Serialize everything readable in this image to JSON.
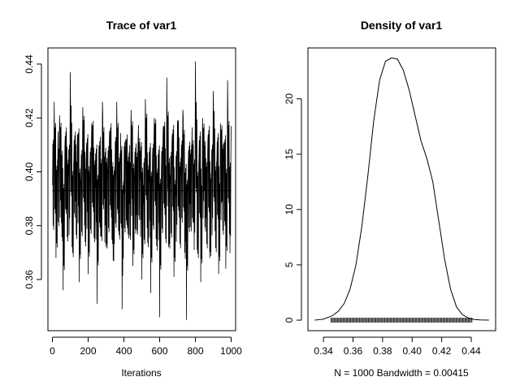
{
  "chart_data": [
    {
      "type": "line",
      "title": "Trace of var1",
      "xlabel": "Iterations",
      "ylabel": "",
      "xlim": [
        -25,
        1025
      ],
      "ylim": [
        0.341,
        0.446
      ],
      "x_ticks": [
        0,
        200,
        400,
        600,
        800,
        1000
      ],
      "x_tick_labels": [
        "0",
        "200",
        "400",
        "600",
        "800",
        "1000"
      ],
      "y_ticks": [
        0.36,
        0.38,
        0.4,
        0.42,
        0.44
      ],
      "y_tick_labels": [
        "0.36",
        "0.38",
        "0.40",
        "0.42",
        "0.44"
      ],
      "mean_line": 0.393,
      "series": [
        {
          "x": [
            1,
            10,
            20,
            30,
            40,
            50,
            60,
            70,
            80,
            90,
            100,
            110,
            120,
            130,
            140,
            150,
            160,
            170,
            180,
            190,
            200,
            210,
            220,
            230,
            240,
            250,
            260,
            270,
            280,
            290,
            300,
            310,
            320,
            330,
            340,
            350,
            360,
            370,
            380,
            390,
            400,
            410,
            420,
            430,
            440,
            450,
            460,
            470,
            480,
            490,
            500,
            510,
            520,
            530,
            540,
            550,
            560,
            570,
            580,
            590,
            600,
            610,
            620,
            630,
            640,
            650,
            660,
            670,
            680,
            690,
            700,
            710,
            720,
            730,
            740,
            750,
            760,
            770,
            780,
            790,
            800,
            810,
            820,
            830,
            840,
            850,
            860,
            870,
            880,
            890,
            900,
            910,
            920,
            930,
            940,
            950,
            960,
            970,
            980,
            990,
            1000
          ],
          "y": [
            0.395,
            0.426,
            0.368,
            0.405,
            0.421,
            0.381,
            0.356,
            0.41,
            0.386,
            0.399,
            0.437,
            0.372,
            0.405,
            0.389,
            0.414,
            0.359,
            0.398,
            0.424,
            0.38,
            0.407,
            0.362,
            0.401,
            0.418,
            0.385,
            0.394,
            0.351,
            0.409,
            0.376,
            0.426,
            0.39,
            0.372,
            0.403,
            0.415,
            0.383,
            0.367,
            0.398,
            0.426,
            0.378,
            0.403,
            0.349,
            0.392,
            0.412,
            0.379,
            0.388,
            0.423,
            0.365,
            0.401,
            0.384,
            0.413,
            0.397,
            0.36,
            0.388,
            0.427,
            0.379,
            0.396,
            0.355,
            0.406,
            0.42,
            0.375,
            0.393,
            0.346,
            0.402,
            0.417,
            0.384,
            0.435,
            0.372,
            0.396,
            0.413,
            0.361,
            0.391,
            0.419,
            0.383,
            0.399,
            0.423,
            0.37,
            0.345,
            0.403,
            0.388,
            0.41,
            0.381,
            0.441,
            0.371,
            0.405,
            0.359,
            0.42,
            0.393,
            0.383,
            0.412,
            0.368,
            0.399,
            0.43,
            0.378,
            0.403,
            0.362,
            0.418,
            0.389,
            0.411,
            0.364,
            0.434,
            0.377,
            0.417
          ]
        }
      ]
    },
    {
      "type": "line",
      "title": "Density of var1",
      "xlabel": "N = 1000   Bandwidth = 0.00415",
      "ylabel": "",
      "xlim": [
        0.3295,
        0.4565
      ],
      "ylim": [
        -0.95,
        24.6
      ],
      "x_ticks": [
        0.34,
        0.36,
        0.38,
        0.4,
        0.42,
        0.44
      ],
      "x_tick_labels": [
        "0.34",
        "0.36",
        "0.38",
        "0.40",
        "0.42",
        "0.44"
      ],
      "y_ticks": [
        0,
        5,
        10,
        15,
        20
      ],
      "y_tick_labels": [
        "0",
        "5",
        "10",
        "15",
        "20"
      ],
      "rug": "observations along x axis",
      "series": [
        {
          "x": [
            0.334,
            0.34,
            0.346,
            0.35,
            0.354,
            0.358,
            0.362,
            0.366,
            0.37,
            0.374,
            0.378,
            0.382,
            0.386,
            0.39,
            0.394,
            0.398,
            0.402,
            0.406,
            0.41,
            0.414,
            0.418,
            0.422,
            0.426,
            0.43,
            0.434,
            0.438,
            0.442,
            0.446,
            0.452
          ],
          "y": [
            0.0,
            0.1,
            0.4,
            0.8,
            1.5,
            2.8,
            5.0,
            8.5,
            13.0,
            18.0,
            21.7,
            23.4,
            23.7,
            23.6,
            22.6,
            20.8,
            18.5,
            16.2,
            14.6,
            12.5,
            9.0,
            5.5,
            2.8,
            1.2,
            0.5,
            0.2,
            0.06,
            0.02,
            0.0
          ]
        }
      ]
    }
  ]
}
